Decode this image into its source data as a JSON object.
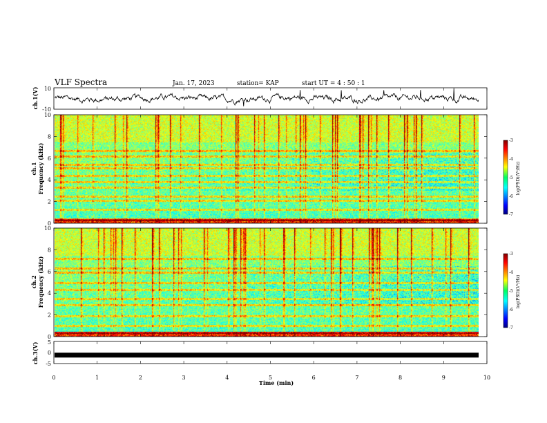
{
  "header": {
    "title": "VLF Spectra",
    "date": "Jan. 17, 2023",
    "station": "station= KAP",
    "start": "start  UT =   4 : 50 : 1"
  },
  "chart_data": [
    {
      "type": "line",
      "name": "ch1-waveform",
      "ylabel": "ch.1(V)",
      "ylim": [
        -10,
        10
      ],
      "yticks": [
        10,
        -10
      ],
      "xlim": [
        0,
        10
      ],
      "description_values": {
        "typical_min": -5,
        "typical_max": 5
      }
    },
    {
      "type": "heatmap",
      "name": "ch1-spectrogram",
      "ylabel": "ch.1\nFrequency (kHz)",
      "ylim": [
        0,
        10
      ],
      "yticks": [
        "0",
        "2",
        "4",
        "6",
        "8",
        "10"
      ],
      "xlim": [
        0,
        9.8
      ],
      "colorbar": {
        "label": "log(PSD)(V²/Hz)",
        "range": [
          -7,
          -3
        ],
        "ticks": [
          "-3",
          "-4",
          "-5",
          "-6",
          "-7"
        ]
      },
      "bands_khz": [
        0.3,
        1.3,
        2.1,
        2.5,
        3.3,
        3.8,
        4.4,
        5.1,
        5.4,
        6.2,
        6.7
      ]
    },
    {
      "type": "heatmap",
      "name": "ch2-spectrogram",
      "ylabel": "ch.2\nFrequency (kHz)",
      "ylim": [
        0,
        10
      ],
      "yticks": [
        "0",
        "2",
        "4",
        "6",
        "8",
        "10"
      ],
      "xlim": [
        0,
        9.8
      ],
      "colorbar": {
        "label": "log(PSD)(V²/Hz)",
        "range": [
          -7,
          -3
        ],
        "ticks": [
          "-3",
          "-4",
          "-5",
          "-6",
          "-7"
        ]
      },
      "bands_khz": [
        0.4,
        1.0,
        1.9,
        2.9,
        3.5,
        4.3,
        5.0,
        5.9,
        6.3,
        7.2
      ]
    },
    {
      "type": "line",
      "name": "ch3-waveform",
      "ylabel": "ch.3(V)",
      "ylim": [
        -5,
        5
      ],
      "yticks": [
        "5",
        "0",
        "-5"
      ],
      "xlim": [
        0,
        10
      ],
      "level": -1.2
    }
  ],
  "axis": {
    "xlabel": "Time (min)",
    "xticks": [
      "0",
      "1",
      "2",
      "3",
      "4",
      "5",
      "6",
      "7",
      "8",
      "9",
      "10"
    ]
  },
  "colors": {
    "jet_low": "#000080",
    "jet_high": "#800000",
    "line": "#000000"
  }
}
